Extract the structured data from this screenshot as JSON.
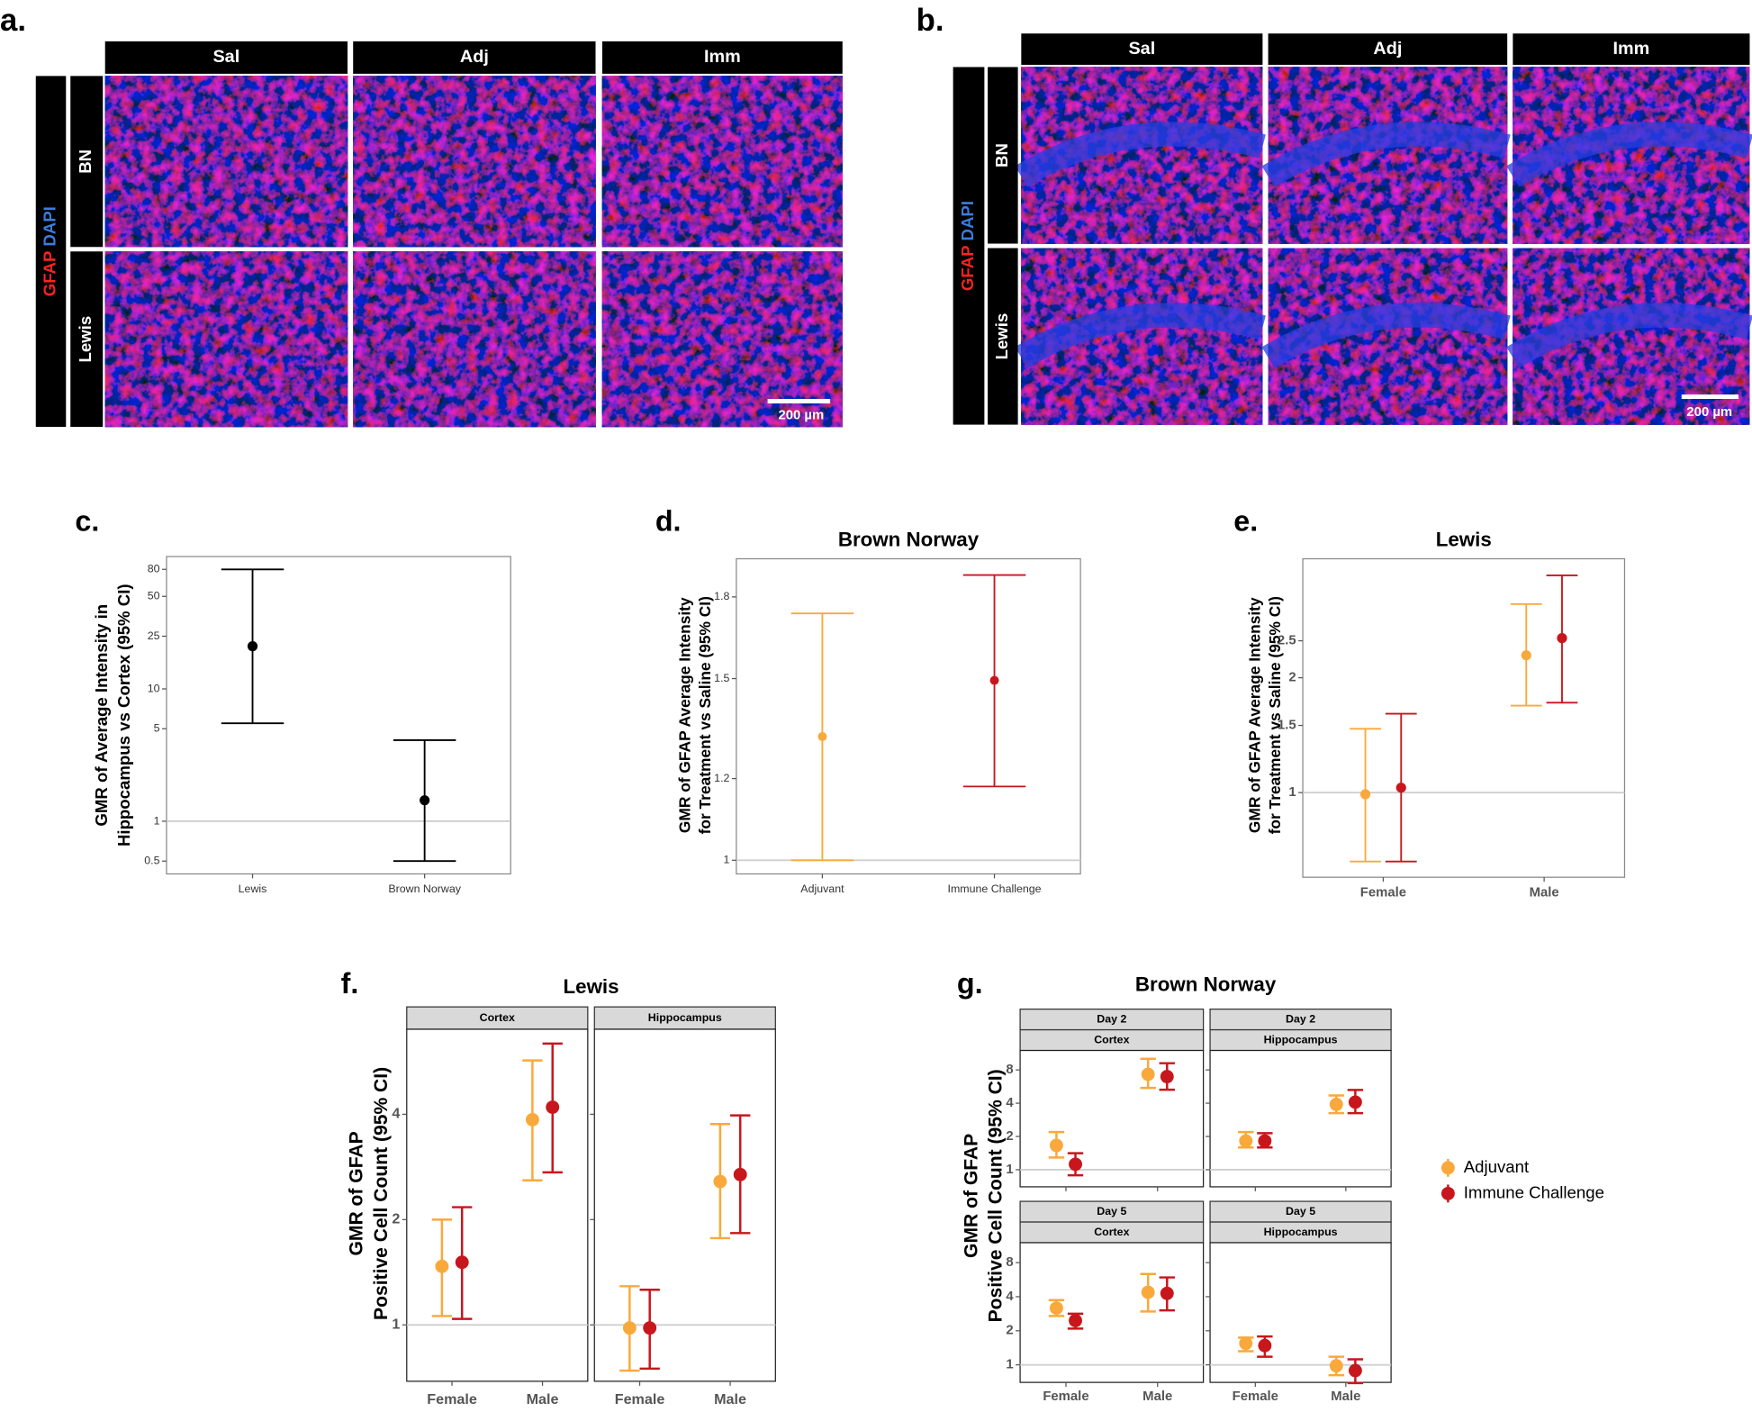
{
  "micrographs": [
    {
      "label": "a.",
      "columns": [
        "Sal",
        "Adj",
        "Imm"
      ],
      "rows": [
        "BN",
        "Lewis"
      ],
      "stain": [
        "GFAP",
        "DAPI"
      ],
      "stain_colors": [
        "#ff2222",
        "#3b7ddd"
      ],
      "scale_bar": "200 µm"
    },
    {
      "label": "b.",
      "columns": [
        "Sal",
        "Adj",
        "Imm"
      ],
      "rows": [
        "BN",
        "Lewis"
      ],
      "stain": [
        "GFAP",
        "DAPI"
      ],
      "stain_colors": [
        "#ff2222",
        "#3b7ddd"
      ],
      "scale_bar": "200 µm"
    }
  ],
  "chart_data": [
    {
      "type": "errorbar",
      "panel_label": "c.",
      "y_label": [
        "GMR of Average Intensity in",
        "Hippocampus vs Cortex (95% CI)"
      ],
      "categories": [
        "Lewis",
        "Brown Norway"
      ],
      "log_y": true,
      "ylim": [
        0.4,
        100
      ],
      "yticks": [
        0.5,
        1,
        5,
        10,
        25,
        50,
        80
      ],
      "hline": 1,
      "series": [
        {
          "color": "#000000",
          "values": [
            21,
            1.44
          ],
          "lower": [
            5.5,
            0.5
          ],
          "upper": [
            80,
            4.1
          ]
        }
      ]
    },
    {
      "type": "errorbar",
      "panel_label": "d.",
      "title": "Brown Norway",
      "y_label": [
        "GMR of GFAP Average Intensity",
        "for Treatment vs Saline (95% CI)"
      ],
      "categories": [
        "Adjuvant",
        "Immune Challenge"
      ],
      "log_y": true,
      "ylim": [
        0.97,
        1.96
      ],
      "yticks": [
        1,
        1.2,
        1.5,
        1.8
      ],
      "hline": 1,
      "series": [
        {
          "color": "#f9a93b",
          "values": [
            1.318,
            null
          ],
          "lower": [
            1.0,
            null
          ],
          "upper": [
            1.735,
            null
          ]
        },
        {
          "color": "#c8161d",
          "values": [
            null,
            1.494
          ],
          "lower": [
            null,
            1.179
          ],
          "upper": [
            null,
            1.89
          ]
        }
      ]
    },
    {
      "type": "errorbar",
      "panel_label": "e.",
      "title": "Lewis",
      "y_label": [
        "GMR of GFAP Average Intensity",
        "for Treatment vs Saline (95% CI)"
      ],
      "categories": [
        "Female",
        "Male"
      ],
      "log_y": true,
      "ylim": [
        0.6,
        4.1
      ],
      "yticks": [
        1,
        1.5,
        2,
        2.5
      ],
      "hline": 1,
      "series": [
        {
          "color": "#f9a93b",
          "values": [
            0.99,
            2.29
          ],
          "lower": [
            0.66,
            1.69
          ],
          "upper": [
            1.47,
            3.12
          ]
        },
        {
          "color": "#c8161d",
          "values": [
            1.03,
            2.54
          ],
          "lower": [
            0.66,
            1.72
          ],
          "upper": [
            1.61,
            3.71
          ]
        }
      ]
    },
    {
      "type": "errorbar",
      "panel_label": "f.",
      "title": "Lewis",
      "y_label": [
        "GMR of GFAP",
        "Positive Cell Count (95% CI)"
      ],
      "categories": [
        "Female",
        "Male"
      ],
      "log_y": true,
      "ylim": [
        0.69,
        7
      ],
      "yticks": [
        1,
        2,
        4
      ],
      "hline": 1,
      "facets": [
        {
          "strips": [
            "Cortex"
          ],
          "series": [
            {
              "color": "#f9a93b",
              "values": [
                1.47,
                3.86
              ],
              "lower": [
                1.06,
                2.59
              ],
              "upper": [
                2.0,
                5.7
              ]
            },
            {
              "color": "#c8161d",
              "values": [
                1.51,
                4.19
              ],
              "lower": [
                1.04,
                2.73
              ],
              "upper": [
                2.17,
                6.37
              ]
            }
          ]
        },
        {
          "strips": [
            "Hippocampus"
          ],
          "series": [
            {
              "color": "#f9a93b",
              "values": [
                0.98,
                2.57
              ],
              "lower": [
                0.74,
                1.77
              ],
              "upper": [
                1.29,
                3.75
              ]
            },
            {
              "color": "#c8161d",
              "values": [
                0.98,
                2.69
              ],
              "lower": [
                0.75,
                1.83
              ],
              "upper": [
                1.26,
                3.97
              ]
            }
          ]
        }
      ]
    },
    {
      "type": "errorbar",
      "panel_label": "g.",
      "title": "Brown Norway",
      "y_label": [
        "GMR of GFAP",
        "Positive Cell Count (95% CI)"
      ],
      "categories": [
        "Female",
        "Male"
      ],
      "log_y": true,
      "ylim": [
        0.7,
        12
      ],
      "yticks": [
        1,
        2,
        4,
        8
      ],
      "hline": 1,
      "legend": {
        "position": "right",
        "entries": [
          {
            "name": "Adjuvant",
            "color": "#f9a93b"
          },
          {
            "name": "Immune Challenge",
            "color": "#c8161d"
          }
        ]
      },
      "facets": [
        {
          "strips": [
            "Day 2",
            "Cortex"
          ],
          "series": [
            {
              "color": "#f9a93b",
              "values": [
                1.66,
                7.3
              ],
              "lower": [
                1.29,
                5.5
              ],
              "upper": [
                2.19,
                10.1
              ]
            },
            {
              "color": "#c8161d",
              "values": [
                1.12,
                6.96
              ],
              "lower": [
                0.89,
                5.3
              ],
              "upper": [
                1.41,
                9.2
              ]
            }
          ]
        },
        {
          "strips": [
            "Day 2",
            "Hippocampus"
          ],
          "series": [
            {
              "color": "#f9a93b",
              "values": [
                1.82,
                3.9
              ],
              "lower": [
                1.59,
                3.25
              ],
              "upper": [
                2.19,
                4.7
              ]
            },
            {
              "color": "#c8161d",
              "values": [
                1.82,
                4.09
              ],
              "lower": [
                1.59,
                3.25
              ],
              "upper": [
                2.14,
                5.27
              ]
            }
          ]
        },
        {
          "strips": [
            "Day 5",
            "Cortex"
          ],
          "series": [
            {
              "color": "#f9a93b",
              "values": [
                3.17,
                4.38
              ],
              "lower": [
                2.7,
                2.96
              ],
              "upper": [
                3.73,
                6.35
              ]
            },
            {
              "color": "#c8161d",
              "values": [
                2.46,
                4.28
              ],
              "lower": [
                2.09,
                3.03
              ],
              "upper": [
                2.83,
                5.92
              ]
            }
          ]
        },
        {
          "strips": [
            "Day 5",
            "Hippocampus"
          ],
          "series": [
            {
              "color": "#f9a93b",
              "values": [
                1.55,
                0.98
              ],
              "lower": [
                1.32,
                0.81
              ],
              "upper": [
                1.74,
                1.18
              ]
            },
            {
              "color": "#c8161d",
              "values": [
                1.48,
                0.89
              ],
              "lower": [
                1.18,
                0.69
              ],
              "upper": [
                1.78,
                1.12
              ]
            }
          ]
        }
      ]
    }
  ]
}
